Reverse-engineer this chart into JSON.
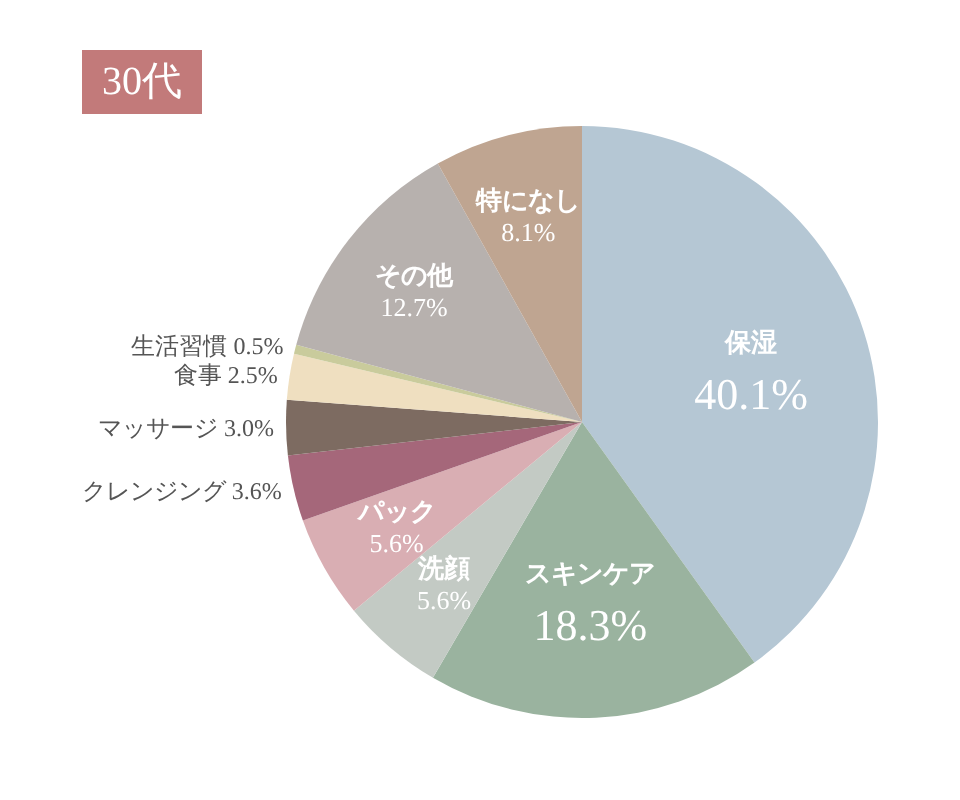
{
  "chart_data": {
    "type": "pie",
    "title": "30代",
    "categories": [
      "保湿",
      "スキンケア",
      "洗顔",
      "パック",
      "クレンジング",
      "マッサージ",
      "食事",
      "生活習慣",
      "その他",
      "特になし"
    ],
    "values": [
      40.1,
      18.3,
      5.6,
      5.6,
      3.6,
      3.0,
      2.5,
      0.5,
      12.7,
      8.1
    ],
    "value_labels": [
      "40.1%",
      "18.3%",
      "5.6%",
      "5.6%",
      "3.6%",
      "3.0%",
      "2.5%",
      "0.5%",
      "12.7%",
      "8.1%"
    ],
    "colors": [
      "#b5c7d4",
      "#9ab39f",
      "#c3cac4",
      "#d9aeb3",
      "#a5677a",
      "#7d6b61",
      "#efdfc0",
      "#c9cb9c",
      "#b7b1ae",
      "#bfa591"
    ],
    "legend": false
  }
}
